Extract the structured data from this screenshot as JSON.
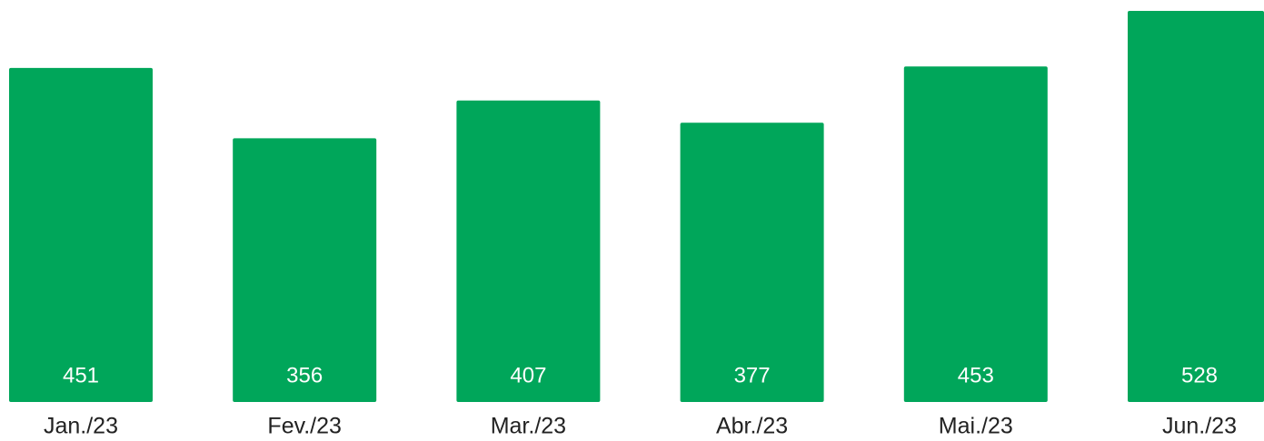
{
  "chart_data": {
    "type": "bar",
    "categories": [
      "Jan./23",
      "Fev./23",
      "Mar./23",
      "Abr./23",
      "Mai./23",
      "Jun./23"
    ],
    "values": [
      451,
      356,
      407,
      377,
      453,
      528
    ],
    "color": "#00a65a"
  }
}
